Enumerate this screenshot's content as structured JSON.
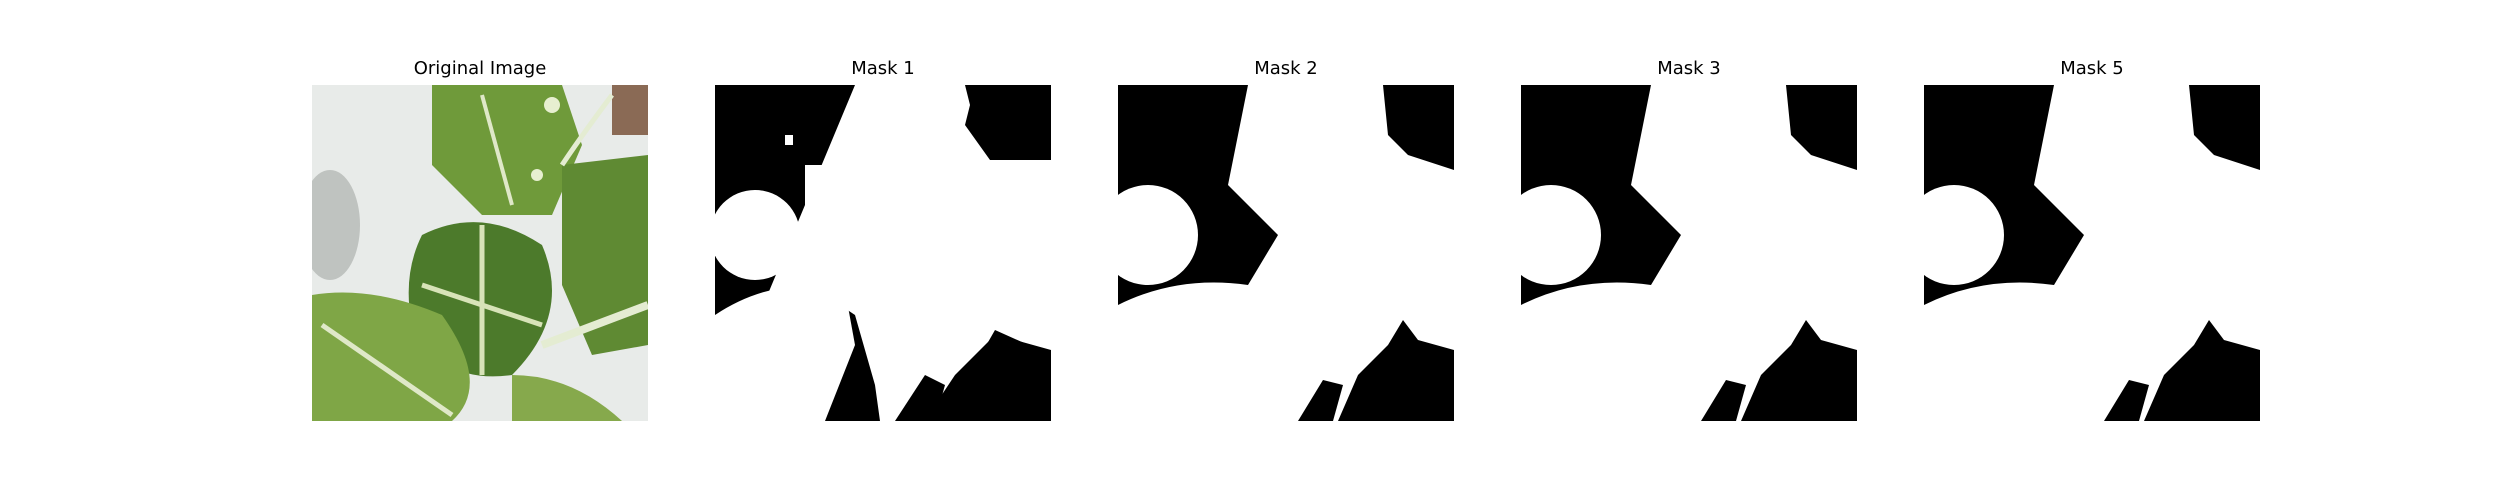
{
  "figure": {
    "panels": [
      {
        "title": "Original Image",
        "kind": "photo"
      },
      {
        "title": "Mask 1",
        "kind": "mask"
      },
      {
        "title": "Mask 2",
        "kind": "mask"
      },
      {
        "title": "Mask 3",
        "kind": "mask"
      },
      {
        "title": "Mask 5",
        "kind": "mask"
      }
    ]
  },
  "colors": {
    "mask_foreground": "#ffffff",
    "mask_background": "#000000",
    "leaf_green": "#6f9a3a",
    "leaf_dark": "#4c7a2b",
    "vein": "#dfe8c8",
    "background_white": "#e9ecea"
  }
}
